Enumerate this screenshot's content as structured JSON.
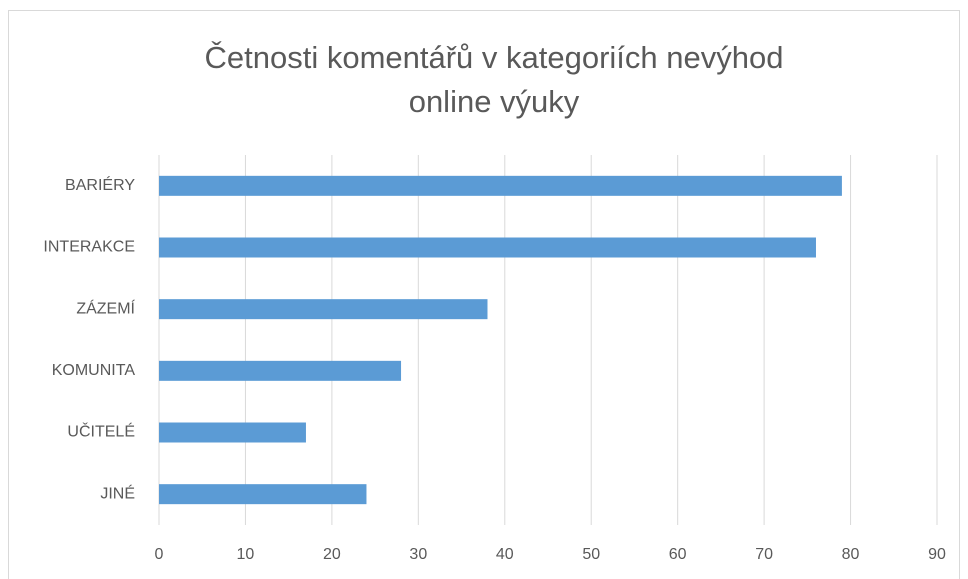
{
  "chart_data": {
    "type": "bar",
    "orientation": "horizontal",
    "title": "Četnosti komentářů v kategoriích nevýhod online výuky",
    "categories": [
      "BARIÉRY",
      "INTERAKCE",
      "ZÁZEMÍ",
      "KOMUNITA",
      "UČITELÉ",
      "JINÉ"
    ],
    "values": [
      79,
      76,
      38,
      28,
      17,
      24
    ],
    "color": "#5b9bd5",
    "xlim": [
      0,
      90
    ],
    "xticks": [
      0,
      10,
      20,
      30,
      40,
      50,
      60,
      70,
      80,
      90
    ],
    "grid": true
  }
}
